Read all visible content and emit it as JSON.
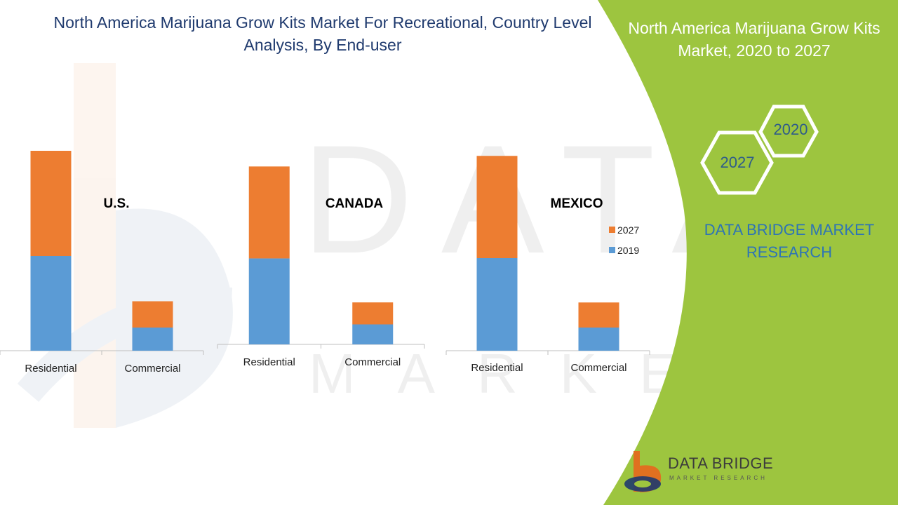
{
  "title": "North America Marijuana Grow Kits Market For Recreational, Country Level Analysis, By End-user",
  "side_panel": {
    "title": "North America Marijuana Grow Kits Market, 2020 to 2027",
    "hex_years": [
      "2020",
      "2027"
    ],
    "brand": "DATA BRIDGE MARKET RESEARCH",
    "logo_name": "DATA BRIDGE",
    "logo_sub": "MARKET RESEARCH"
  },
  "colors": {
    "2019": "#5b9bd5",
    "2027": "#ed7d31",
    "panel": "#9dc53f"
  },
  "chart_data": [
    {
      "type": "bar",
      "stacked": true,
      "panel_label": "U.S.",
      "categories": [
        "Residential",
        "Commercial"
      ],
      "series": [
        {
          "name": "2019",
          "values": [
            45,
            11
          ]
        },
        {
          "name": "2027",
          "values": [
            50,
            12.5
          ]
        }
      ],
      "ylim": [
        0,
        100
      ]
    },
    {
      "type": "bar",
      "stacked": true,
      "panel_label": "CANADA",
      "categories": [
        "Residential",
        "Commercial"
      ],
      "series": [
        {
          "name": "2019",
          "values": [
            43,
            10
          ]
        },
        {
          "name": "2027",
          "values": [
            46,
            11
          ]
        }
      ],
      "ylim": [
        0,
        100
      ]
    },
    {
      "type": "bar",
      "stacked": true,
      "panel_label": "MEXICO",
      "categories": [
        "Residential",
        "Commercial"
      ],
      "series": [
        {
          "name": "2019",
          "values": [
            48,
            12
          ]
        },
        {
          "name": "2027",
          "values": [
            53,
            13
          ]
        }
      ],
      "ylim": [
        0,
        100
      ],
      "legend": {
        "placement": "right",
        "entries": [
          "2027",
          "2019"
        ]
      }
    }
  ]
}
